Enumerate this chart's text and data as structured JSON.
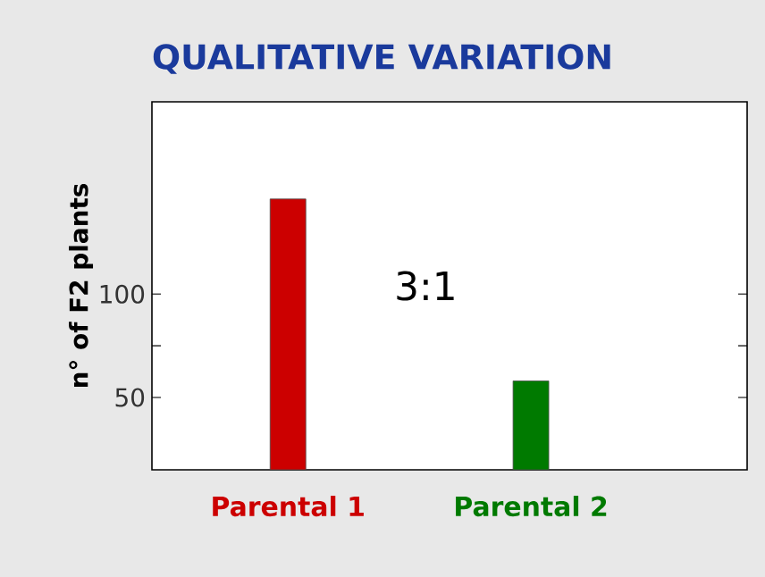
{
  "chart_data": {
    "type": "bar",
    "title": "QUALITATIVE VARIATION",
    "ylabel": "n° of F2 plants",
    "categories": [
      "Parental 1",
      "Parental 2"
    ],
    "values": [
      146,
      58
    ],
    "colors": [
      "#cc0000",
      "#007a00"
    ],
    "ylim": [
      15,
      193
    ],
    "yticks": [
      50,
      {
        "value": 75,
        "label": null
      },
      100
    ],
    "annotations": [
      "3:1"
    ]
  }
}
